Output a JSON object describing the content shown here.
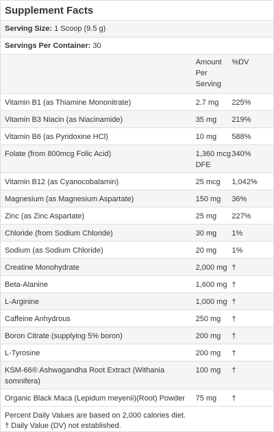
{
  "title": "Supplement Facts",
  "serving_size": {
    "label": "Serving Size:",
    "value": "1 Scoop (9.5 g)"
  },
  "servings_per_container": {
    "label": "Servings Per Container:",
    "value": "30"
  },
  "header": {
    "name": "",
    "amount": "Amount Per Serving",
    "dv": "%DV"
  },
  "rows": [
    {
      "name": "Vitamin B1 (as Thiamine Mononitrate)",
      "amount": "2.7 mg",
      "dv": "225%"
    },
    {
      "name": "Vitamin B3 Niacin (as Niacinamide)",
      "amount": "35 mg",
      "dv": "219%"
    },
    {
      "name": "Vitamin B6 (as Pyridoxine HCl)",
      "amount": "10 mg",
      "dv": "588%"
    },
    {
      "name": "Folate (from 800mcg Folic Acid)",
      "amount": "1,360 mcg DFE",
      "dv": "340%"
    },
    {
      "name": "Vitamin B12 (as Cyanocobalamin)",
      "amount": "25 mcg",
      "dv": "1,042%"
    },
    {
      "name": "Magnesium (as Magnesium Aspartate)",
      "amount": "150 mg",
      "dv": "36%"
    },
    {
      "name": "Zinc (as Zinc Aspartate)",
      "amount": "25 mg",
      "dv": "227%"
    },
    {
      "name": "Chloride (from Sodium Chloride)",
      "amount": "30 mg",
      "dv": "1%"
    },
    {
      "name": "Sodium (as Sodium Chloride)",
      "amount": "20 mg",
      "dv": "1%"
    },
    {
      "name": "Creatine Monohydrate",
      "amount": "2,000 mg",
      "dv": "†"
    },
    {
      "name": "Beta-Alanine",
      "amount": "1,600 mg",
      "dv": "†"
    },
    {
      "name": "L-Arginine",
      "amount": "1,000 mg",
      "dv": "†"
    },
    {
      "name": "Caffeine Anhydrous",
      "amount": "250 mg",
      "dv": "†"
    },
    {
      "name": "Boron Citrate (supplying 5% boron)",
      "amount": "200 mg",
      "dv": "†"
    },
    {
      "name": "L-Tyrosine",
      "amount": "200 mg",
      "dv": "†"
    },
    {
      "name": "KSM-66® Ashwagandha Root Extract (Withania somnifera)",
      "amount": "100 mg",
      "dv": "†"
    },
    {
      "name": "Organic Black Maca (Lepidum meyenii)(Root) Powder",
      "amount": "75 mg",
      "dv": "†"
    }
  ],
  "footer": {
    "line1": "Percent Daily Values are based on 2,000 calories diet.",
    "line2": "† Daily Value (DV) not established."
  }
}
